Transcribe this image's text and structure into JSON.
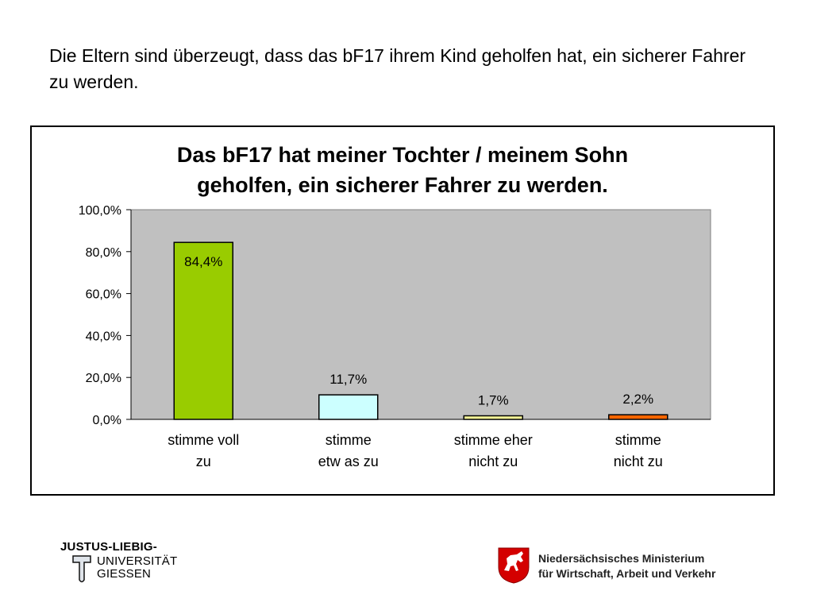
{
  "slide": {
    "heading": "Die Eltern sind überzeugt, dass das bF17 ihrem Kind geholfen hat, ein sicherer Fahrer zu werden."
  },
  "chart_data": {
    "type": "bar",
    "title_lines": [
      "Das bF17 hat meiner Tochter / meinem Sohn",
      "geholfen, ein sicherer Fahrer zu werden."
    ],
    "xlabel": "",
    "ylabel": "",
    "ylim": [
      0,
      100
    ],
    "y_ticks": [
      {
        "value": 0,
        "label": "0,0%"
      },
      {
        "value": 20,
        "label": "20,0%"
      },
      {
        "value": 40,
        "label": "40,0%"
      },
      {
        "value": 60,
        "label": "60,0%"
      },
      {
        "value": 80,
        "label": "80,0%"
      },
      {
        "value": 100,
        "label": "100,0%"
      }
    ],
    "grid": false,
    "plot_background": "#c0c0c0",
    "categories": [
      [
        "stimme voll",
        "zu"
      ],
      [
        "stimme",
        "etw as zu"
      ],
      [
        "stimme eher",
        "nicht zu"
      ],
      [
        "stimme",
        "nicht zu"
      ]
    ],
    "values": [
      84.4,
      11.7,
      1.7,
      2.2
    ],
    "value_labels": [
      "84,4%",
      "11,7%",
      "1,7%",
      "2,2%"
    ],
    "bar_colors": [
      "#99cc00",
      "#ccffff",
      "#ffff99",
      "#ff6600"
    ]
  },
  "logos": {
    "university": [
      "JUSTUS-LIEBIG-",
      "UNIVERSITÄT",
      "GIESSEN"
    ],
    "ministry": [
      "Niedersächsisches Ministerium",
      "für Wirtschaft, Arbeit und Verkehr"
    ]
  }
}
